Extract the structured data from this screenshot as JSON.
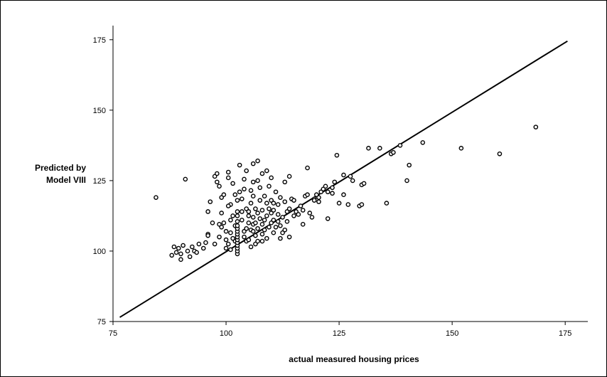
{
  "chart_data": {
    "type": "scatter",
    "title": "",
    "xlabel": "actual measured housing prices",
    "ylabel_lines": [
      "Predicted by",
      "Model VIII"
    ],
    "xlim": [
      75,
      180
    ],
    "ylim": [
      75,
      180
    ],
    "xticks": [
      75,
      100,
      125,
      150,
      175
    ],
    "yticks": [
      75,
      100,
      125,
      150,
      175
    ],
    "grid": false,
    "legend": "none",
    "fit_line": {
      "x": [
        76.5,
        175.5
      ],
      "y": [
        76.5,
        174.5
      ]
    },
    "points": [
      [
        84.5,
        119.0
      ],
      [
        88.0,
        98.5
      ],
      [
        89.0,
        99.5
      ],
      [
        89.5,
        101.0
      ],
      [
        90.0,
        97.0
      ],
      [
        90.5,
        102.0
      ],
      [
        91.0,
        125.5
      ],
      [
        91.5,
        100.0
      ],
      [
        92.0,
        98.0
      ],
      [
        92.5,
        101.5
      ],
      [
        93.0,
        100.0
      ],
      [
        93.5,
        99.5
      ],
      [
        94.0,
        102.5
      ],
      [
        95.0,
        101.0
      ],
      [
        95.5,
        103.0
      ],
      [
        96.0,
        106.0
      ],
      [
        96.0,
        114.0
      ],
      [
        96.5,
        117.5
      ],
      [
        97.0,
        110.0
      ],
      [
        97.5,
        102.5
      ],
      [
        97.5,
        126.5
      ],
      [
        98.0,
        124.5
      ],
      [
        98.0,
        127.5
      ],
      [
        98.5,
        105.0
      ],
      [
        98.5,
        109.5
      ],
      [
        98.5,
        123.0
      ],
      [
        99.0,
        113.5
      ],
      [
        99.0,
        119.0
      ],
      [
        99.5,
        120.0
      ],
      [
        99.5,
        110.0
      ],
      [
        100.0,
        107.0
      ],
      [
        100.0,
        104.0
      ],
      [
        100.0,
        101.0
      ],
      [
        100.5,
        126.0
      ],
      [
        100.5,
        128.0
      ],
      [
        100.5,
        102.5
      ],
      [
        101.0,
        116.5
      ],
      [
        101.0,
        111.0
      ],
      [
        101.0,
        106.5
      ],
      [
        101.0,
        100.5
      ],
      [
        101.5,
        112.5
      ],
      [
        101.5,
        124.0
      ],
      [
        102.0,
        109.0
      ],
      [
        102.0,
        103.5
      ],
      [
        102.0,
        120.0
      ],
      [
        102.5,
        99.0
      ],
      [
        102.5,
        100.0
      ],
      [
        102.5,
        101.0
      ],
      [
        102.5,
        102.0
      ],
      [
        102.5,
        103.0
      ],
      [
        102.5,
        104.0
      ],
      [
        102.5,
        105.0
      ],
      [
        102.5,
        106.0
      ],
      [
        102.5,
        107.0
      ],
      [
        102.5,
        108.0
      ],
      [
        102.5,
        109.0
      ],
      [
        102.5,
        110.5
      ],
      [
        102.5,
        112.5
      ],
      [
        102.5,
        114.0
      ],
      [
        102.5,
        118.0
      ],
      [
        103.0,
        121.0
      ],
      [
        103.0,
        130.5
      ],
      [
        103.5,
        114.0
      ],
      [
        103.5,
        118.5
      ],
      [
        104.0,
        105.0
      ],
      [
        104.0,
        107.0
      ],
      [
        104.0,
        125.5
      ],
      [
        104.5,
        103.5
      ],
      [
        104.5,
        108.0
      ],
      [
        104.5,
        115.0
      ],
      [
        104.5,
        128.5
      ],
      [
        105.0,
        110.0
      ],
      [
        105.0,
        112.5
      ],
      [
        105.0,
        104.0
      ],
      [
        105.5,
        117.0
      ],
      [
        105.5,
        107.5
      ],
      [
        105.5,
        101.5
      ],
      [
        105.5,
        121.5
      ],
      [
        106.0,
        109.5
      ],
      [
        106.0,
        112.0
      ],
      [
        106.0,
        119.5
      ],
      [
        106.0,
        124.5
      ],
      [
        106.0,
        131.0
      ],
      [
        106.5,
        105.5
      ],
      [
        106.5,
        110.0
      ],
      [
        106.5,
        115.0
      ],
      [
        106.5,
        102.5
      ],
      [
        107.0,
        108.0
      ],
      [
        107.0,
        113.5
      ],
      [
        107.0,
        125.0
      ],
      [
        107.0,
        132.0
      ],
      [
        107.5,
        111.5
      ],
      [
        107.5,
        118.0
      ],
      [
        107.5,
        122.5
      ],
      [
        108.0,
        106.0
      ],
      [
        108.0,
        109.5
      ],
      [
        108.0,
        114.5
      ],
      [
        108.0,
        127.5
      ],
      [
        108.5,
        107.5
      ],
      [
        108.5,
        111.0
      ],
      [
        108.5,
        119.5
      ],
      [
        109.0,
        104.5
      ],
      [
        109.0,
        112.5
      ],
      [
        109.0,
        117.0
      ],
      [
        109.0,
        128.5
      ],
      [
        109.5,
        108.5
      ],
      [
        109.5,
        115.0
      ],
      [
        109.5,
        123.0
      ],
      [
        110.0,
        110.0
      ],
      [
        110.0,
        113.5
      ],
      [
        110.0,
        118.0
      ],
      [
        110.0,
        126.0
      ],
      [
        110.5,
        106.5
      ],
      [
        110.5,
        111.0
      ],
      [
        110.5,
        114.5
      ],
      [
        111.0,
        108.5
      ],
      [
        111.0,
        121.0
      ],
      [
        111.5,
        113.0
      ],
      [
        111.5,
        116.5
      ],
      [
        112.0,
        104.5
      ],
      [
        112.0,
        109.0
      ],
      [
        112.0,
        119.0
      ],
      [
        112.5,
        106.5
      ],
      [
        112.5,
        112.0
      ],
      [
        113.0,
        107.5
      ],
      [
        113.0,
        117.5
      ],
      [
        113.0,
        124.5
      ],
      [
        113.5,
        110.5
      ],
      [
        113.5,
        114.0
      ],
      [
        114.0,
        105.0
      ],
      [
        114.0,
        115.0
      ],
      [
        114.0,
        126.5
      ],
      [
        114.5,
        118.5
      ],
      [
        115.0,
        112.5
      ],
      [
        115.5,
        114.0
      ],
      [
        116.0,
        113.0
      ],
      [
        116.5,
        116.0
      ],
      [
        117.0,
        114.5
      ],
      [
        117.0,
        109.5
      ],
      [
        117.5,
        119.5
      ],
      [
        118.0,
        120.0
      ],
      [
        118.0,
        129.5
      ],
      [
        118.5,
        113.5
      ],
      [
        119.0,
        112.0
      ],
      [
        119.5,
        118.5
      ],
      [
        120.0,
        120.0
      ],
      [
        120.5,
        117.5
      ],
      [
        121.0,
        121.0
      ],
      [
        121.5,
        122.0
      ],
      [
        122.0,
        123.0
      ],
      [
        122.5,
        111.5
      ],
      [
        123.5,
        120.5
      ],
      [
        123.5,
        122.5
      ],
      [
        124.0,
        124.5
      ],
      [
        124.5,
        134.0
      ],
      [
        125.0,
        117.0
      ],
      [
        126.0,
        120.0
      ],
      [
        127.0,
        116.5
      ],
      [
        127.5,
        126.5
      ],
      [
        128.0,
        125.0
      ],
      [
        129.5,
        116.0
      ],
      [
        130.0,
        123.5
      ],
      [
        130.5,
        124.0
      ],
      [
        131.5,
        136.5
      ],
      [
        134.0,
        136.5
      ],
      [
        135.5,
        117.0
      ],
      [
        136.5,
        134.5
      ],
      [
        137.0,
        135.0
      ],
      [
        138.5,
        137.5
      ],
      [
        140.0,
        125.0
      ],
      [
        140.5,
        130.5
      ],
      [
        143.5,
        138.5
      ],
      [
        152.0,
        136.5
      ],
      [
        160.5,
        134.5
      ],
      [
        168.5,
        144.0
      ],
      [
        88.5,
        101.5
      ],
      [
        90.0,
        99.0
      ],
      [
        96.0,
        105.5
      ],
      [
        99.0,
        108.5
      ],
      [
        100.5,
        116.0
      ],
      [
        101.5,
        104.5
      ],
      [
        103.5,
        111.0
      ],
      [
        104.0,
        122.0
      ],
      [
        105.0,
        114.0
      ],
      [
        106.0,
        107.0
      ],
      [
        107.0,
        103.5
      ],
      [
        108.0,
        103.5
      ],
      [
        110.5,
        117.0
      ],
      [
        111.5,
        110.5
      ],
      [
        115.0,
        118.0
      ],
      [
        119.5,
        118.0
      ],
      [
        120.5,
        119.0
      ],
      [
        122.5,
        121.0
      ],
      [
        126.0,
        127.0
      ],
      [
        130.0,
        116.5
      ]
    ]
  }
}
